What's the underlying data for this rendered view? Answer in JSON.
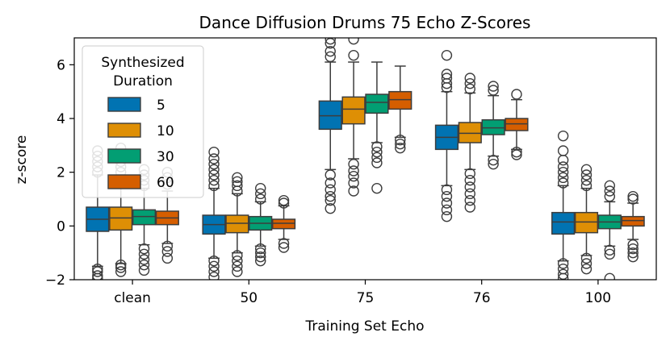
{
  "chart_data": {
    "type": "boxplot",
    "title": "Dance Diffusion Drums 75 Echo Z-Scores",
    "xlabel": "Training Set Echo",
    "ylabel": "z-score",
    "ylim": [
      -2,
      7
    ],
    "yticks": [
      -2,
      0,
      2,
      4,
      6
    ],
    "categories": [
      "clean",
      "50",
      "75",
      "76",
      "100"
    ],
    "legend": {
      "title_lines": [
        "Synthesized",
        "Duration"
      ],
      "position": "upper-left"
    },
    "series": [
      {
        "name": "5",
        "color": "#0173b2",
        "boxes": [
          {
            "q1": -0.2,
            "median": 0.25,
            "q3": 0.7,
            "whisker_low": -1.5,
            "whisker_high": 1.9,
            "outliers_high": [
              2.0,
              2.2,
              2.4,
              2.6,
              2.8
            ],
            "outliers_low": [
              -1.6,
              -1.7,
              -1.85,
              -1.95
            ]
          },
          {
            "q1": -0.3,
            "median": 0.05,
            "q3": 0.4,
            "whisker_low": -1.2,
            "whisker_high": 1.4,
            "outliers_high": [
              1.5,
              1.7,
              1.9,
              2.1,
              2.3,
              2.5,
              2.75
            ],
            "outliers_low": [
              -1.3,
              -1.5,
              -1.7,
              -1.9
            ]
          },
          {
            "q1": 3.6,
            "median": 4.1,
            "q3": 4.65,
            "whisker_low": 2.1,
            "whisker_high": 6.1,
            "outliers_high": [
              6.3,
              6.5,
              6.8,
              6.95
            ],
            "outliers_low": [
              1.9,
              1.6,
              1.35,
              1.1,
              0.95,
              0.65
            ]
          },
          {
            "q1": 2.85,
            "median": 3.3,
            "q3": 3.75,
            "whisker_low": 1.5,
            "whisker_high": 5.0,
            "outliers_high": [
              5.15,
              5.3,
              5.5,
              5.65,
              6.35
            ],
            "outliers_low": [
              1.35,
              1.1,
              0.85,
              0.6,
              0.35
            ]
          },
          {
            "q1": -0.3,
            "median": 0.15,
            "q3": 0.5,
            "whisker_low": -1.3,
            "whisker_high": 1.5,
            "outliers_high": [
              1.6,
              1.8,
              2.0,
              2.2,
              2.45,
              2.8,
              3.35
            ],
            "outliers_low": [
              -1.4,
              -1.6,
              -1.8,
              -1.95
            ]
          }
        ]
      },
      {
        "name": "10",
        "color": "#de8f05",
        "boxes": [
          {
            "q1": -0.15,
            "median": 0.3,
            "q3": 0.7,
            "whisker_low": -1.4,
            "whisker_high": 1.9,
            "outliers_high": [
              2.0,
              2.2,
              2.4,
              2.6,
              2.9
            ],
            "outliers_low": [
              -1.45,
              -1.55,
              -1.7
            ]
          },
          {
            "q1": -0.25,
            "median": 0.1,
            "q3": 0.4,
            "whisker_low": -1.0,
            "whisker_high": 1.2,
            "outliers_high": [
              1.3,
              1.5,
              1.65,
              1.8
            ],
            "outliers_low": [
              -1.1,
              -1.3,
              -1.5,
              -1.7
            ]
          },
          {
            "q1": 3.8,
            "median": 4.35,
            "q3": 4.8,
            "whisker_low": 2.5,
            "whisker_high": 6.1,
            "outliers_high": [
              6.35,
              6.95
            ],
            "outliers_low": [
              2.3,
              2.05,
              1.85,
              1.6,
              1.3
            ]
          },
          {
            "q1": 3.1,
            "median": 3.45,
            "q3": 3.85,
            "whisker_low": 2.1,
            "whisker_high": 4.95,
            "outliers_high": [
              5.1,
              5.3,
              5.5
            ],
            "outliers_low": [
              1.95,
              1.7,
              1.45,
              1.2,
              0.95,
              0.7
            ]
          },
          {
            "q1": -0.25,
            "median": 0.15,
            "q3": 0.5,
            "whisker_low": -1.1,
            "whisker_high": 1.4,
            "outliers_high": [
              1.5,
              1.7,
              1.9,
              2.1
            ],
            "outliers_low": [
              -1.2,
              -1.4,
              -1.6
            ]
          }
        ]
      },
      {
        "name": "30",
        "color": "#029e73",
        "boxes": [
          {
            "q1": 0.05,
            "median": 0.35,
            "q3": 0.6,
            "whisker_low": -0.7,
            "whisker_high": 1.4,
            "outliers_high": [
              1.5,
              1.7,
              1.9,
              2.1
            ],
            "outliers_low": [
              -0.85,
              -1.05,
              -1.25,
              -1.45,
              -1.65
            ]
          },
          {
            "q1": -0.15,
            "median": 0.1,
            "q3": 0.35,
            "whisker_low": -0.75,
            "whisker_high": 0.9,
            "outliers_high": [
              1.0,
              1.2,
              1.4
            ],
            "outliers_low": [
              -0.85,
              -1.0,
              -1.15,
              -1.3
            ]
          },
          {
            "q1": 4.2,
            "median": 4.6,
            "q3": 4.9,
            "whisker_low": 3.1,
            "whisker_high": 6.1,
            "outliers_high": [],
            "outliers_low": [
              2.95,
              2.75,
              2.55,
              2.35,
              1.4
            ]
          },
          {
            "q1": 3.4,
            "median": 3.65,
            "q3": 3.95,
            "whisker_low": 2.6,
            "whisker_high": 4.85,
            "outliers_high": [
              5.05,
              5.2
            ],
            "outliers_low": [
              2.45,
              2.3
            ]
          },
          {
            "q1": -0.1,
            "median": 0.15,
            "q3": 0.4,
            "whisker_low": -0.75,
            "whisker_high": 0.9,
            "outliers_high": [
              1.1,
              1.3,
              1.5
            ],
            "outliers_low": [
              -0.9,
              -1.05,
              -1.95
            ]
          }
        ]
      },
      {
        "name": "60",
        "color": "#d55e00",
        "boxes": [
          {
            "q1": 0.05,
            "median": 0.3,
            "q3": 0.55,
            "whisker_low": -0.65,
            "whisker_high": 1.3,
            "outliers_high": [
              1.55,
              1.8,
              2.0
            ],
            "outliers_low": [
              -0.75,
              -0.95,
              -1.2
            ]
          },
          {
            "q1": -0.1,
            "median": 0.1,
            "q3": 0.25,
            "whisker_low": -0.5,
            "whisker_high": 0.75,
            "outliers_high": [
              0.85,
              0.95
            ],
            "outliers_low": [
              -0.65,
              -0.8
            ]
          },
          {
            "q1": 4.35,
            "median": 4.7,
            "q3": 5.0,
            "whisker_low": 3.3,
            "whisker_high": 5.95,
            "outliers_high": [],
            "outliers_low": [
              3.2,
              3.05,
              2.9
            ]
          },
          {
            "q1": 3.55,
            "median": 3.8,
            "q3": 4.0,
            "whisker_low": 2.85,
            "whisker_high": 4.7,
            "outliers_high": [
              4.9
            ],
            "outliers_low": [
              2.75,
              2.65
            ]
          },
          {
            "q1": 0.0,
            "median": 0.2,
            "q3": 0.35,
            "whisker_low": -0.5,
            "whisker_high": 0.85,
            "outliers_high": [
              1.0,
              1.1
            ],
            "outliers_low": [
              -0.7,
              -0.85,
              -1.0,
              -1.15
            ]
          }
        ]
      }
    ]
  }
}
